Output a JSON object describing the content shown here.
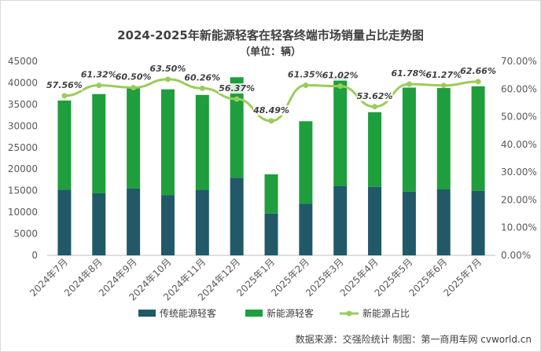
{
  "chart_data": {
    "type": "bar",
    "subtype": "stacked-bar-with-line",
    "title": "2024-2025年新能源轻客在轻客终端市场销量占比走势图",
    "subtitle": "（单位：辆）",
    "categories": [
      "2024年7月",
      "2024年8月",
      "2024年9月",
      "2024年10月",
      "2024年11月",
      "2024年12月",
      "2025年1月",
      "2025年2月",
      "2025年3月",
      "2025年4月",
      "2025年5月",
      "2025年6月",
      "2025年7月"
    ],
    "series": [
      {
        "name": "传统能源轻客",
        "type": "bar",
        "axis": "left",
        "color": "#215968",
        "values": [
          15200,
          14400,
          15500,
          14000,
          15200,
          18000,
          9700,
          12000,
          16100,
          15900,
          14800,
          15300,
          15000
        ]
      },
      {
        "name": "新能源轻客",
        "type": "bar",
        "axis": "left",
        "color": "#1e9e3c",
        "values": [
          20700,
          23000,
          23600,
          24500,
          22000,
          23300,
          9100,
          19100,
          25600,
          17300,
          24100,
          23500,
          24200
        ]
      },
      {
        "name": "新能源占比",
        "type": "line",
        "axis": "right",
        "color": "#9bcc5a",
        "values": [
          57.56,
          61.32,
          60.5,
          63.5,
          60.26,
          56.37,
          48.49,
          61.35,
          61.02,
          53.62,
          61.78,
          61.27,
          62.66
        ],
        "labels": [
          "57.56%",
          "61.32%",
          "60.50%",
          "63.50%",
          "60.26%",
          "56.37%",
          "48.49%",
          "61.35%",
          "61.02%",
          "53.62%",
          "61.78%",
          "61.27%",
          "62.66%"
        ]
      }
    ],
    "left_axis": {
      "ylim": [
        0,
        45000
      ],
      "ticks": [
        "0",
        "5000",
        "10000",
        "15000",
        "20000",
        "25000",
        "30000",
        "35000",
        "40000",
        "45000"
      ]
    },
    "right_axis": {
      "ylim": [
        0,
        70
      ],
      "ticks": [
        "0.00%",
        "10.00%",
        "20.00%",
        "30.00%",
        "40.00%",
        "50.00%",
        "60.00%",
        "70.00%"
      ]
    },
    "legend": [
      "传统能源轻客",
      "新能源轻客",
      "新能源占比"
    ],
    "legend_position": "bottom",
    "grid": false
  },
  "source": "数据来源：交强险统计  制图：第一商用车网 cvworld.cn"
}
